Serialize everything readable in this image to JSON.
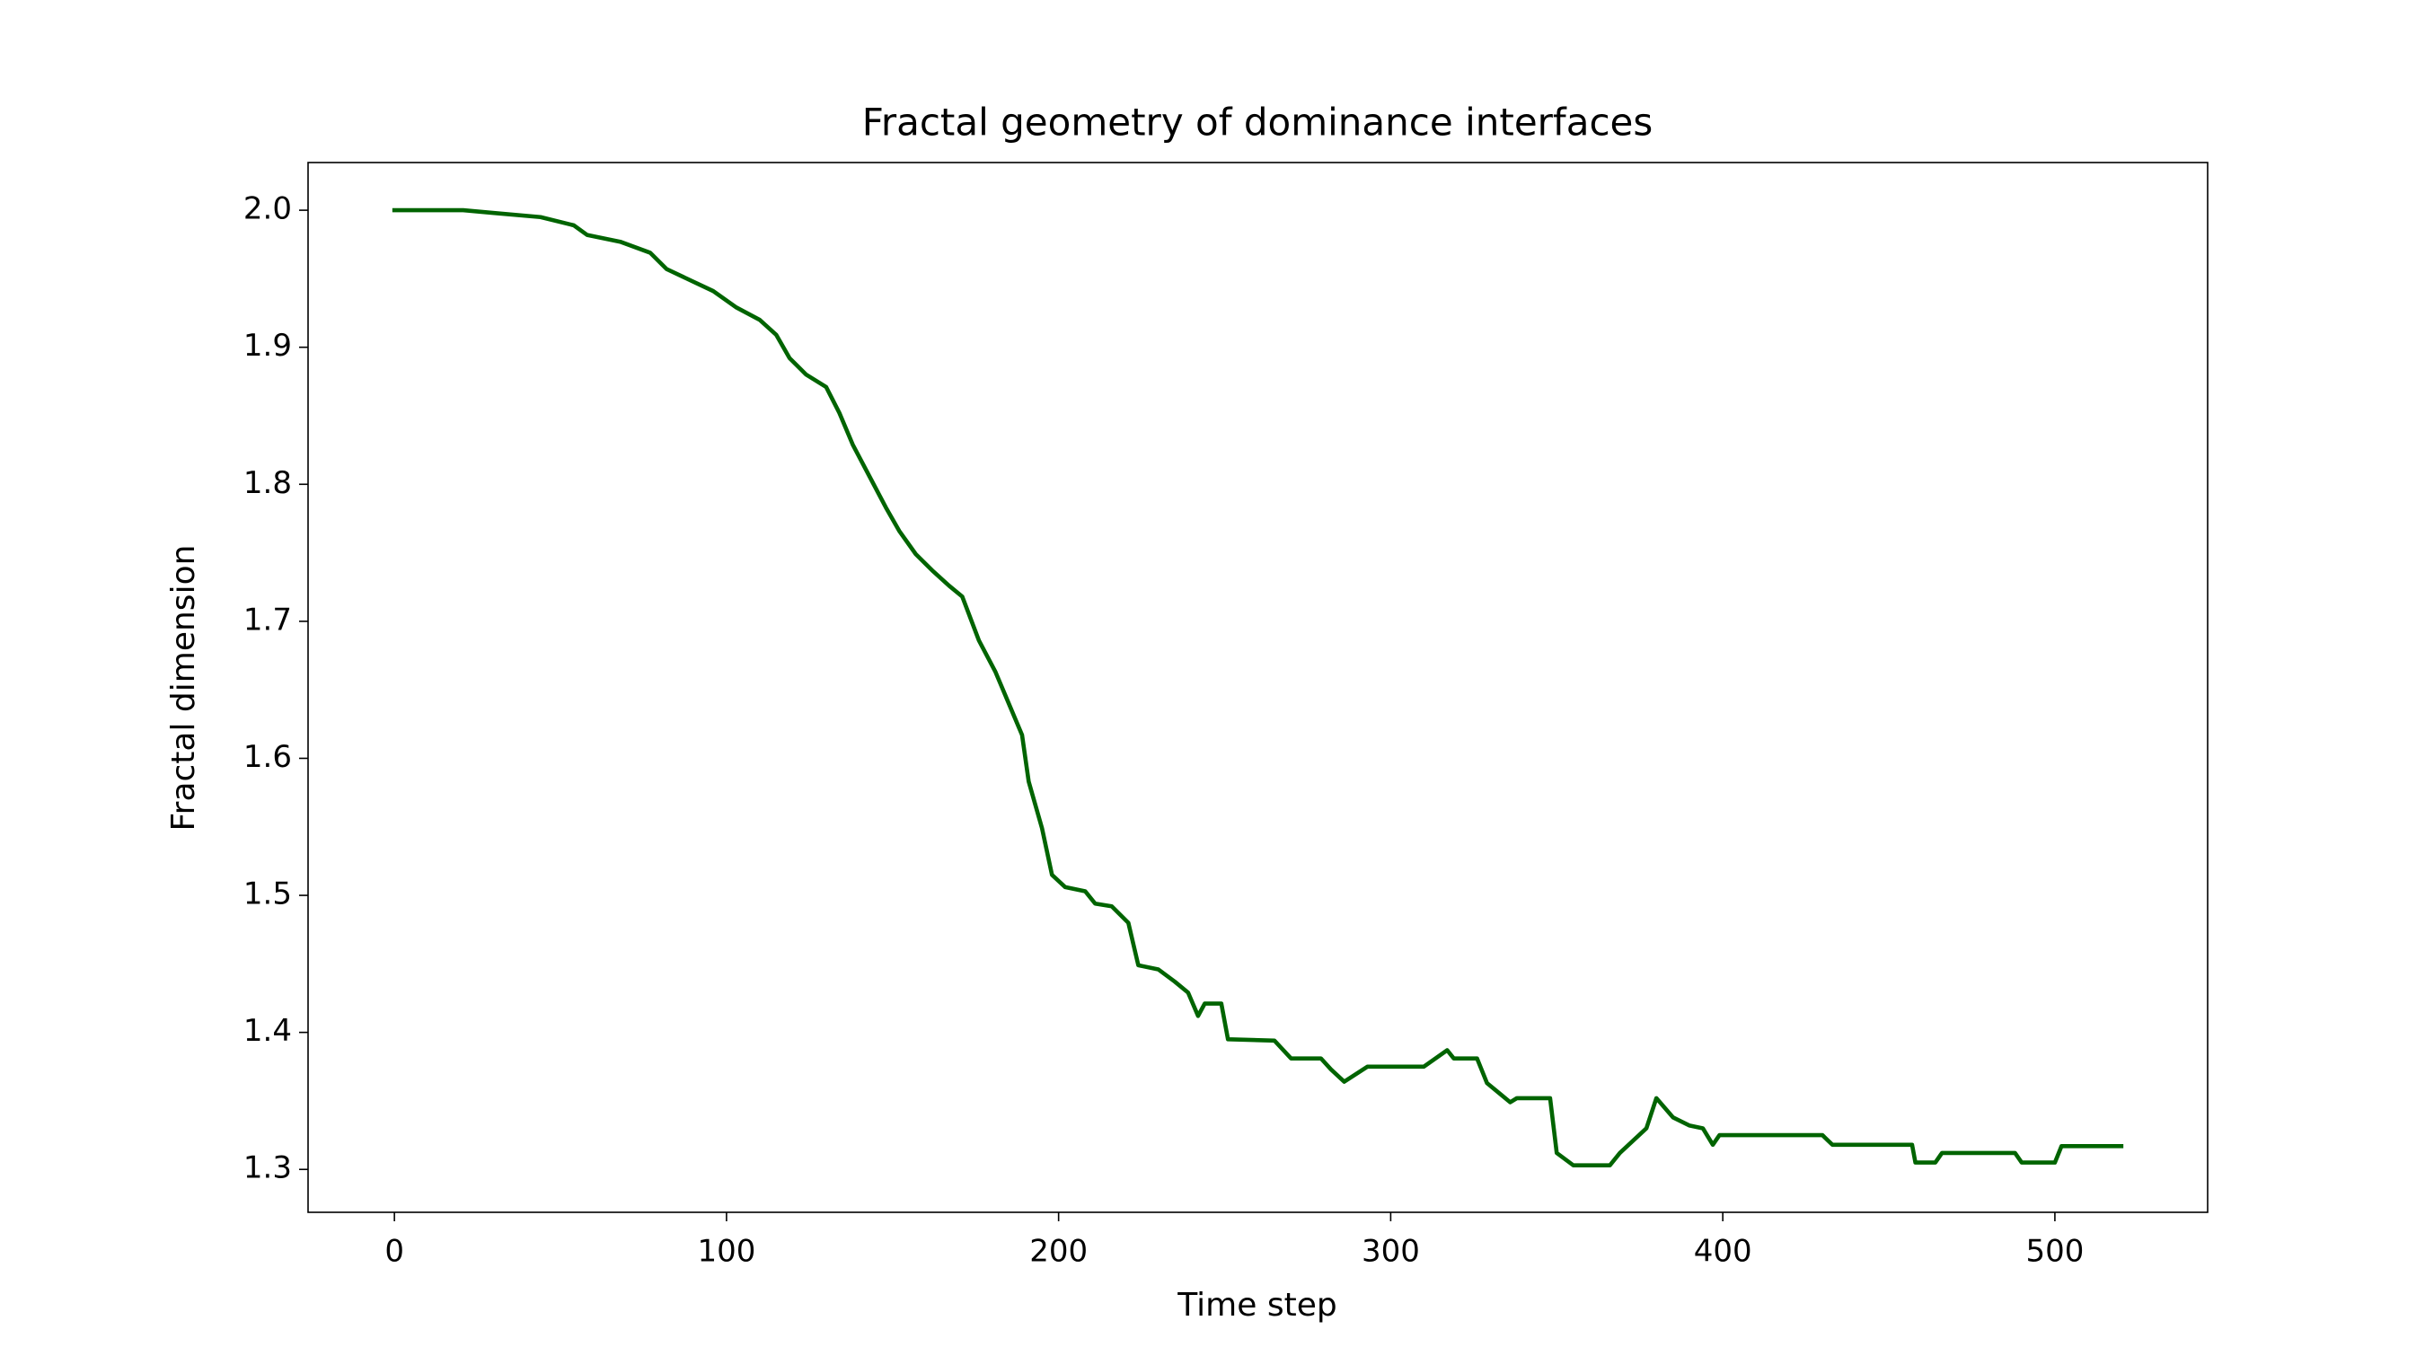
{
  "chart_data": {
    "type": "line",
    "title": "Fractal geometry of dominance interfaces",
    "xlabel": "Time step",
    "ylabel": "Fractal dimension",
    "x": [
      0,
      20.7,
      30,
      44,
      54,
      58,
      68,
      77,
      82,
      89,
      96,
      103,
      110,
      115,
      119,
      124,
      130,
      134,
      138,
      143,
      148,
      152,
      157,
      162,
      167,
      171,
      176,
      181,
      185,
      189,
      191,
      195,
      198,
      202,
      208,
      211,
      216,
      221,
      224,
      230,
      235,
      239,
      242,
      244,
      249,
      251,
      265,
      270,
      279,
      282,
      286,
      293,
      310,
      317,
      319,
      326,
      329,
      333,
      336,
      338,
      348,
      350,
      355,
      366,
      369,
      373,
      377,
      380,
      385,
      390,
      394,
      397,
      399,
      430,
      433,
      457,
      458,
      464,
      466,
      488,
      490,
      500,
      502,
      520
    ],
    "series": [
      {
        "name": "Fractal dimension",
        "color": "#006400",
        "values": [
          2.0,
          2.0,
          1.998,
          1.995,
          1.989,
          1.982,
          1.977,
          1.969,
          1.957,
          1.949,
          1.941,
          1.929,
          1.92,
          1.909,
          1.892,
          1.88,
          1.871,
          1.852,
          1.829,
          1.806,
          1.783,
          1.766,
          1.749,
          1.737,
          1.726,
          1.718,
          1.686,
          1.663,
          1.64,
          1.617,
          1.583,
          1.549,
          1.515,
          1.506,
          1.503,
          1.494,
          1.492,
          1.48,
          1.449,
          1.446,
          1.437,
          1.429,
          1.412,
          1.421,
          1.421,
          1.395,
          1.394,
          1.381,
          1.381,
          1.373,
          1.364,
          1.375,
          1.375,
          1.387,
          1.381,
          1.381,
          1.363,
          1.355,
          1.349,
          1.352,
          1.352,
          1.312,
          1.303,
          1.303,
          1.312,
          1.321,
          1.33,
          1.352,
          1.338,
          1.332,
          1.33,
          1.318,
          1.325,
          1.325,
          1.318,
          1.318,
          1.305,
          1.305,
          1.312,
          1.312,
          1.305,
          1.305,
          1.317,
          1.317
        ]
      }
    ],
    "xlim": [
      -26,
      546
    ],
    "xticks": [
      0,
      100,
      200,
      300,
      400,
      500
    ],
    "ylim": [
      1.2687,
      2.0348
    ],
    "yticks": [
      {
        "value": 1.3,
        "label": "1.3"
      },
      {
        "value": 1.4,
        "label": "1.4"
      },
      {
        "value": 1.5,
        "label": "1.5"
      },
      {
        "value": 1.6,
        "label": "1.6"
      },
      {
        "value": 1.7,
        "label": "1.7"
      },
      {
        "value": 1.8,
        "label": "1.8"
      },
      {
        "value": 1.9,
        "label": "1.9"
      },
      {
        "value": 2.0,
        "label": "2.0"
      }
    ],
    "grid": false
  }
}
